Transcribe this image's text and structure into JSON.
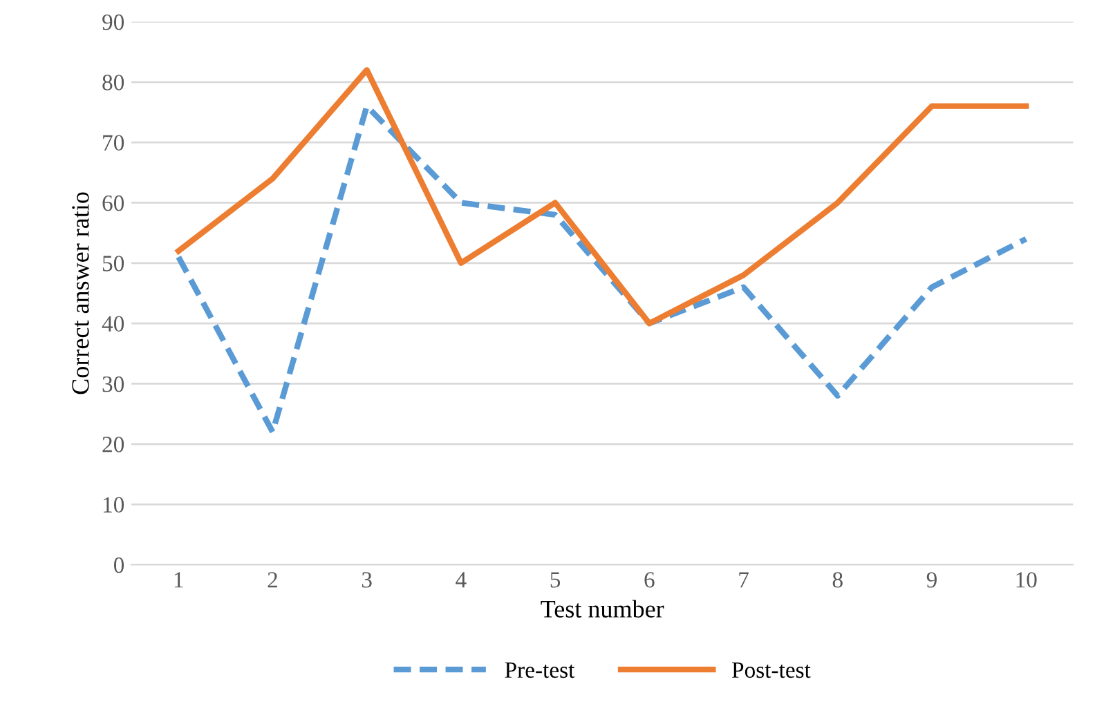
{
  "chart_data": {
    "type": "line",
    "xlabel": "Test number",
    "ylabel": "Correct answer ratio",
    "categories": [
      "1",
      "2",
      "3",
      "4",
      "5",
      "6",
      "7",
      "8",
      "9",
      "10"
    ],
    "series": [
      {
        "name": "Pre-test",
        "color": "#5b9bd5",
        "line_style": "dashed",
        "values": [
          51,
          22,
          76,
          60,
          58,
          40,
          46,
          28,
          46,
          54
        ]
      },
      {
        "name": "Post-test",
        "color": "#ed7d31",
        "line_style": "solid",
        "values": [
          52,
          64,
          82,
          50,
          60,
          40,
          48,
          60,
          76,
          76
        ]
      }
    ],
    "ylim": [
      0,
      90
    ],
    "yticks": [
      0,
      10,
      20,
      30,
      40,
      50,
      60,
      70,
      80,
      90
    ],
    "grid": "y",
    "legend": "bottom",
    "marker": "none"
  }
}
